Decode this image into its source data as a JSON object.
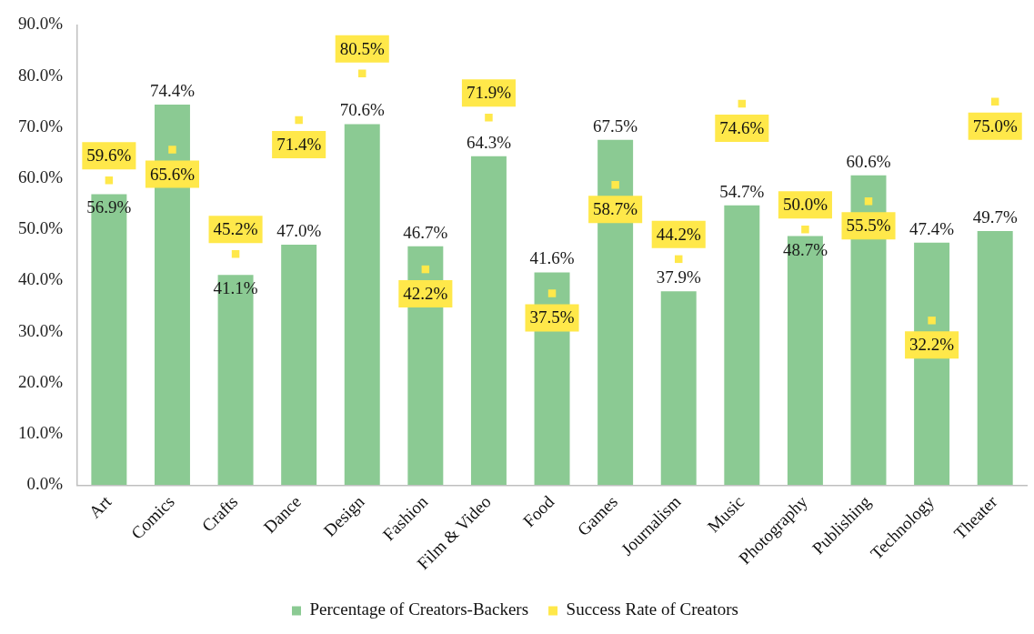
{
  "chart_data": {
    "type": "bar",
    "categories": [
      "Art",
      "Comics",
      "Crafts",
      "Dance",
      "Design",
      "Fashion",
      "Film & Video",
      "Food",
      "Games",
      "Journalism",
      "Music",
      "Photography",
      "Publishing",
      "Technology",
      "Theater"
    ],
    "series": [
      {
        "name": "Percentage of Creators-Backers",
        "color": "#8bca93",
        "values": [
          56.9,
          74.4,
          41.1,
          47.0,
          70.6,
          46.7,
          64.3,
          41.6,
          67.5,
          37.9,
          54.7,
          48.7,
          60.6,
          47.4,
          49.7
        ],
        "value_labels": [
          "56.9%",
          "74.4%",
          "41.1%",
          "47.0%",
          "70.6%",
          "46.7%",
          "64.3%",
          "41.6%",
          "67.5%",
          "37.9%",
          "54.7%",
          "48.7%",
          "60.6%",
          "47.4%",
          "49.7%"
        ]
      },
      {
        "name": "Success Rate of Creators",
        "type": "scatter",
        "color": "#ffe84a",
        "x": [
          "Art",
          "Comics",
          "Crafts",
          "Dance",
          "Design",
          "Fashion",
          "Film & Video",
          "Food",
          "Games",
          "Journalism",
          "Music",
          "Photography",
          "Publishing",
          "Technology",
          "Theater"
        ],
        "values": [
          59.6,
          65.6,
          45.2,
          71.4,
          80.5,
          42.2,
          71.9,
          37.5,
          58.7,
          44.2,
          74.6,
          50.0,
          55.5,
          32.2,
          75.0
        ],
        "value_labels": [
          "59.6%",
          "65.6%",
          "45.2%",
          "71.4%",
          "80.5%",
          "42.2%",
          "71.9%",
          "37.5%",
          "58.7%",
          "44.2%",
          "74.6%",
          "50.0%",
          "55.5%",
          "32.2%",
          "75.0%"
        ]
      }
    ],
    "ylim": [
      0,
      90
    ],
    "yticks": [
      {
        "value": 0,
        "label": "0.0%"
      },
      {
        "value": 10,
        "label": "10.0%"
      },
      {
        "value": 20,
        "label": "20.0%"
      },
      {
        "value": 30,
        "label": "30.0%"
      },
      {
        "value": 40,
        "label": "40.0%"
      },
      {
        "value": 50,
        "label": "50.0%"
      },
      {
        "value": 60,
        "label": "60.0%"
      },
      {
        "value": 70,
        "label": "70.0%"
      },
      {
        "value": 80,
        "label": "80.0%"
      },
      {
        "value": 90,
        "label": "90.0%"
      }
    ],
    "grid": false,
    "legend": "bottom",
    "marker": "square"
  }
}
